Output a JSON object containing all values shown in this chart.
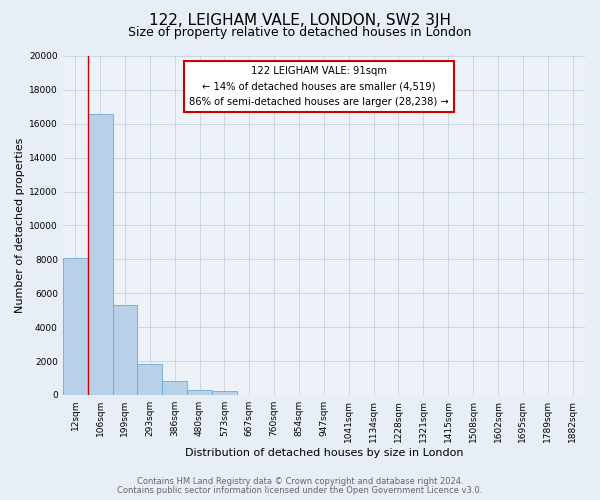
{
  "title": "122, LEIGHAM VALE, LONDON, SW2 3JH",
  "subtitle": "Size of property relative to detached houses in London",
  "xlabel": "Distribution of detached houses by size in London",
  "ylabel": "Number of detached properties",
  "bar_labels": [
    "12sqm",
    "106sqm",
    "199sqm",
    "293sqm",
    "386sqm",
    "480sqm",
    "573sqm",
    "667sqm",
    "760sqm",
    "854sqm",
    "947sqm",
    "1041sqm",
    "1134sqm",
    "1228sqm",
    "1321sqm",
    "1415sqm",
    "1508sqm",
    "1602sqm",
    "1695sqm",
    "1789sqm",
    "1882sqm"
  ],
  "bar_values": [
    8100,
    16600,
    5300,
    1800,
    800,
    300,
    250,
    0,
    0,
    0,
    0,
    0,
    0,
    0,
    0,
    0,
    0,
    0,
    0,
    0,
    0
  ],
  "bar_color": "#b8d0e8",
  "bar_edge_color": "#6aaad4",
  "ylim": [
    0,
    20000
  ],
  "yticks": [
    0,
    2000,
    4000,
    6000,
    8000,
    10000,
    12000,
    14000,
    16000,
    18000,
    20000
  ],
  "red_line_x": 1.0,
  "annotation_title": "122 LEIGHAM VALE: 91sqm",
  "annotation_line1": "← 14% of detached houses are smaller (4,519)",
  "annotation_line2": "86% of semi-detached houses are larger (28,238) →",
  "footer1": "Contains HM Land Registry data © Crown copyright and database right 2024.",
  "footer2": "Contains public sector information licensed under the Open Government Licence v3.0.",
  "bg_color": "#e8eef6",
  "plot_bg_color": "#edf2f9",
  "grid_color": "#c5d0e0",
  "title_fontsize": 11,
  "subtitle_fontsize": 9,
  "tick_fontsize": 6.5,
  "ylabel_fontsize": 8,
  "xlabel_fontsize": 8,
  "annotation_box_color": "#ffffff",
  "annotation_border_color": "#cc0000",
  "red_line_color": "#cc0000",
  "footer_color": "#666666",
  "footer_fontsize": 6.0
}
